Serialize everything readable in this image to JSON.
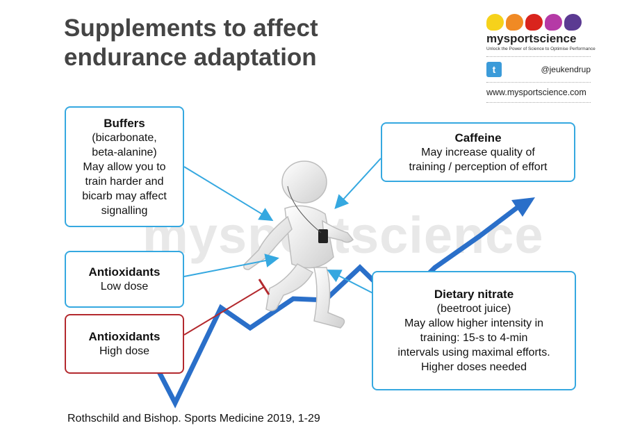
{
  "title": {
    "line1": "Supplements to affect",
    "line2": "endurance adaptation"
  },
  "brand": {
    "name": "mysportscience",
    "tagline": "Unlock the Power of Science to Optimise Performance",
    "dot_colors": [
      "#f6d21b",
      "#f08a24",
      "#d9241d",
      "#b53aa6",
      "#5b3a92"
    ],
    "twitter_handle": "@jeukendrup",
    "website": "www.mysportscience.com",
    "watermark": "mysportscience"
  },
  "boxes": {
    "buffers": {
      "heading": "Buffers",
      "lines": [
        "(bicarbonate,",
        "beta-alanine)",
        "May allow you to",
        "train harder and",
        "bicarb may affect",
        "signalling"
      ]
    },
    "caffeine": {
      "heading": "Caffeine",
      "lines": [
        "May increase quality of",
        "training / perception of effort"
      ]
    },
    "antioxidants_low": {
      "heading": "Antioxidants",
      "lines": [
        "Low dose"
      ]
    },
    "antioxidants_high": {
      "heading": "Antioxidants",
      "lines": [
        "High dose"
      ]
    },
    "nitrate": {
      "heading": "Dietary nitrate",
      "lines": [
        "(beetroot juice)",
        "May allow higher intensity in",
        "training: 15-s to 4-min",
        "intervals using maximal efforts.",
        "Higher doses needed"
      ]
    }
  },
  "citation": "Rothschild and Bishop. Sports Medicine 2019, 1-29",
  "colors": {
    "positive": "#35a8e0",
    "negative": "#b3292e",
    "trend": "#2a6fc9",
    "title": "#444444"
  }
}
